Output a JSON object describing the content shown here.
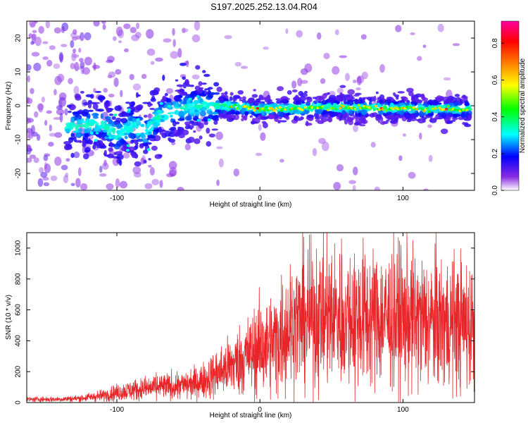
{
  "title": "S197.2025.252.13.04.R04",
  "chart_data": [
    {
      "type": "heatmap",
      "name": "spectrogram",
      "xlabel": "Height of straight line (km)",
      "ylabel": "Frequency (Hz)",
      "xlim": [
        -163,
        150
      ],
      "ylim": [
        -25,
        25
      ],
      "xticks": [
        -100,
        0,
        100
      ],
      "yticks": [
        -20,
        -10,
        0,
        10,
        20
      ],
      "grid": false,
      "ridge": [
        {
          "x": -125,
          "y": -6
        },
        {
          "x": -110,
          "y": -5
        },
        {
          "x": -100,
          "y": -9
        },
        {
          "x": -90,
          "y": -6
        },
        {
          "x": -80,
          "y": -8
        },
        {
          "x": -70,
          "y": -3
        },
        {
          "x": -55,
          "y": -1
        },
        {
          "x": -40,
          "y": 0
        },
        {
          "x": -25,
          "y": 0
        },
        {
          "x": 0,
          "y": -1
        },
        {
          "x": 50,
          "y": -0.5
        },
        {
          "x": 100,
          "y": -0.8
        },
        {
          "x": 145,
          "y": -1
        }
      ],
      "colorbar": {
        "label": "Normalized spectral amplitude",
        "range": [
          0,
          0.92
        ],
        "ticks": [
          0.0,
          0.2,
          0.4,
          0.6,
          0.8
        ],
        "tick_labels": [
          "0.0",
          "0.2",
          "0.4",
          "0.6",
          "0.8"
        ]
      }
    },
    {
      "type": "line",
      "name": "snr",
      "xlabel": "Height of straight line (km)",
      "ylabel": "SNR (10 * v/v)",
      "xlim": [
        -163,
        150
      ],
      "ylim": [
        0,
        1100
      ],
      "xticks": [
        -100,
        0,
        100
      ],
      "yticks": [
        0,
        200,
        400,
        600,
        800,
        1000
      ],
      "grid": false,
      "series": [
        {
          "name": "SNR",
          "color": "#e8262a",
          "envelope": [
            {
              "x": -163,
              "mean": 20
            },
            {
              "x": -140,
              "mean": 22
            },
            {
              "x": -125,
              "mean": 28
            },
            {
              "x": -110,
              "mean": 45
            },
            {
              "x": -100,
              "mean": 65
            },
            {
              "x": -90,
              "mean": 80
            },
            {
              "x": -80,
              "mean": 90
            },
            {
              "x": -70,
              "mean": 100
            },
            {
              "x": -60,
              "mean": 105
            },
            {
              "x": -50,
              "mean": 115
            },
            {
              "x": -40,
              "mean": 140
            },
            {
              "x": -30,
              "mean": 190
            },
            {
              "x": -20,
              "mean": 240
            },
            {
              "x": -10,
              "mean": 300
            },
            {
              "x": 0,
              "mean": 350
            },
            {
              "x": 10,
              "mean": 390
            },
            {
              "x": 20,
              "mean": 500
            },
            {
              "x": 30,
              "mean": 530
            },
            {
              "x": 50,
              "mean": 560
            },
            {
              "x": 75,
              "mean": 550
            },
            {
              "x": 100,
              "mean": 540
            },
            {
              "x": 125,
              "mean": 520
            },
            {
              "x": 150,
              "mean": 510
            }
          ]
        }
      ]
    }
  ]
}
